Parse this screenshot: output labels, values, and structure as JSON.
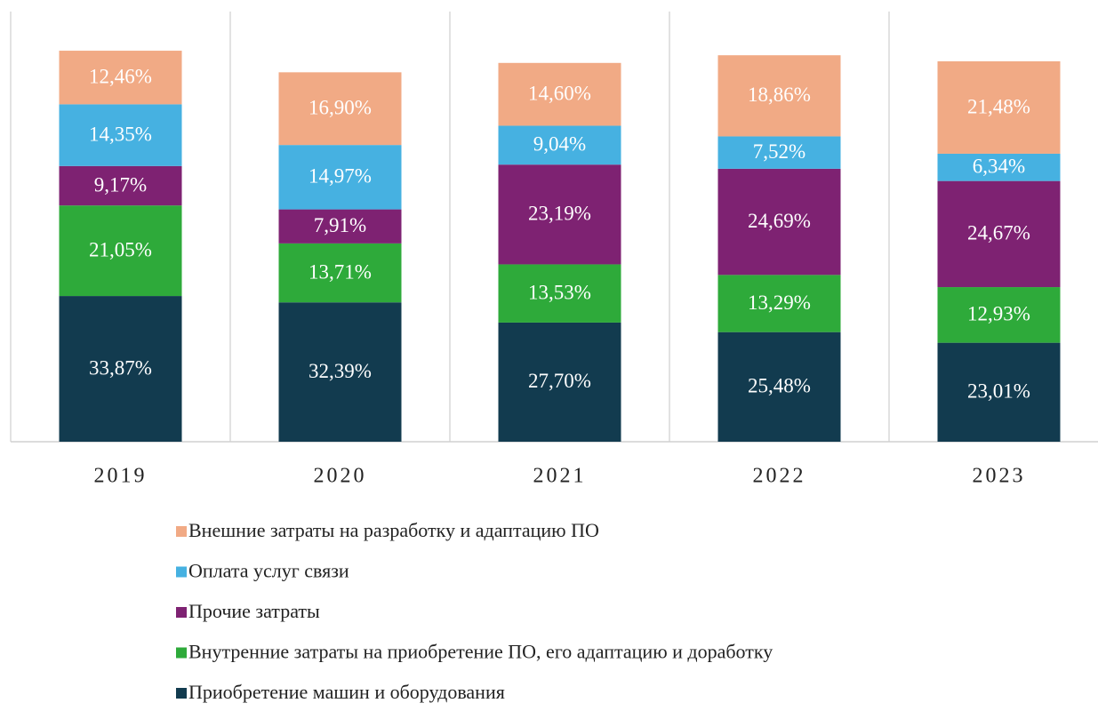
{
  "chart_data": {
    "type": "stacked_bar",
    "categories": [
      "2019",
      "2020",
      "2021",
      "2022",
      "2023"
    ],
    "ylim": [
      0,
      100
    ],
    "series": [
      {
        "name": "Приобретение машин и оборудования",
        "color": "#123b4f",
        "values": [
          33.87,
          32.39,
          27.7,
          25.48,
          23.01
        ],
        "value_labels": [
          "33,87%",
          "32,39%",
          "27,70%",
          "25,48%",
          "23,01%"
        ]
      },
      {
        "name": "Внутренние затраты на приобретение ПО, его адаптацию и доработку",
        "color": "#2eaa3a",
        "values": [
          21.05,
          13.71,
          13.53,
          13.29,
          12.93
        ],
        "value_labels": [
          "21,05%",
          "13,71%",
          "13,53%",
          "13,29%",
          "12,93%"
        ]
      },
      {
        "name": "Прочие затраты",
        "color": "#7e2272",
        "values": [
          9.17,
          7.91,
          23.19,
          24.69,
          24.67
        ],
        "value_labels": [
          "9,17%",
          "7,91%",
          "23,19%",
          "24,69%",
          "24,67%"
        ]
      },
      {
        "name": "Оплата услуг связи",
        "color": "#46b1e1",
        "values": [
          14.35,
          14.97,
          9.04,
          7.52,
          6.34
        ],
        "value_labels": [
          "14,35%",
          "14,97%",
          "9,04%",
          "7,52%",
          "6,34%"
        ]
      },
      {
        "name": "Внешние затраты на разработку и адаптацию ПО",
        "color": "#f1aa85",
        "values": [
          12.46,
          16.9,
          14.6,
          18.86,
          21.48
        ],
        "value_labels": [
          "12,46%",
          "16,90%",
          "14,60%",
          "18,86%",
          "21,48%"
        ]
      }
    ]
  }
}
